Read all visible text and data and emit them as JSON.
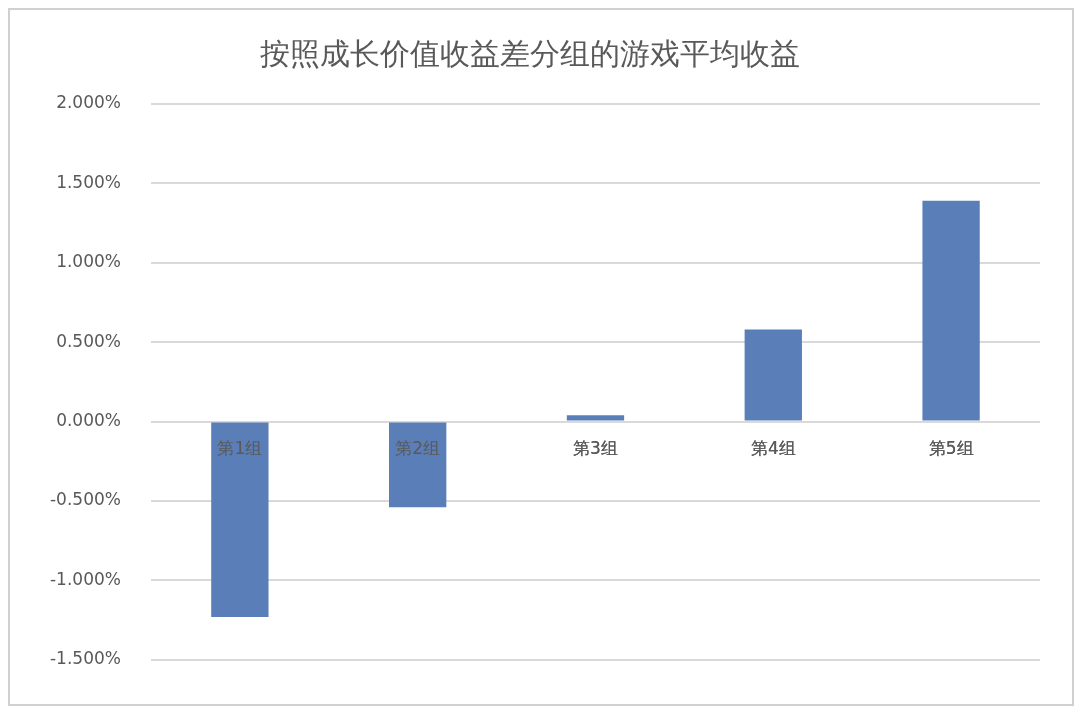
{
  "chart_data": {
    "type": "bar",
    "title": "按照成长价值收益差分组的游戏平均收益",
    "categories": [
      "第1组",
      "第2组",
      "第3组",
      "第4组",
      "第5组"
    ],
    "values": [
      -1.23,
      -0.54,
      0.04,
      0.58,
      1.39
    ],
    "color": "#5a7fb8",
    "ylim": [
      -1.5,
      2
    ],
    "yticks": [
      {
        "value": -1.5,
        "label": "-1.500%"
      },
      {
        "value": -1,
        "label": "-1.000%"
      },
      {
        "value": -0.5,
        "label": "-0.500%"
      },
      {
        "value": 0,
        "label": "0.000%"
      },
      {
        "value": 0.5,
        "label": "0.500%"
      },
      {
        "value": 1,
        "label": "1.000%"
      },
      {
        "value": 1.5,
        "label": "1.500%"
      },
      {
        "value": 2,
        "label": "2.000%"
      }
    ],
    "grid": "y",
    "legend": false
  }
}
